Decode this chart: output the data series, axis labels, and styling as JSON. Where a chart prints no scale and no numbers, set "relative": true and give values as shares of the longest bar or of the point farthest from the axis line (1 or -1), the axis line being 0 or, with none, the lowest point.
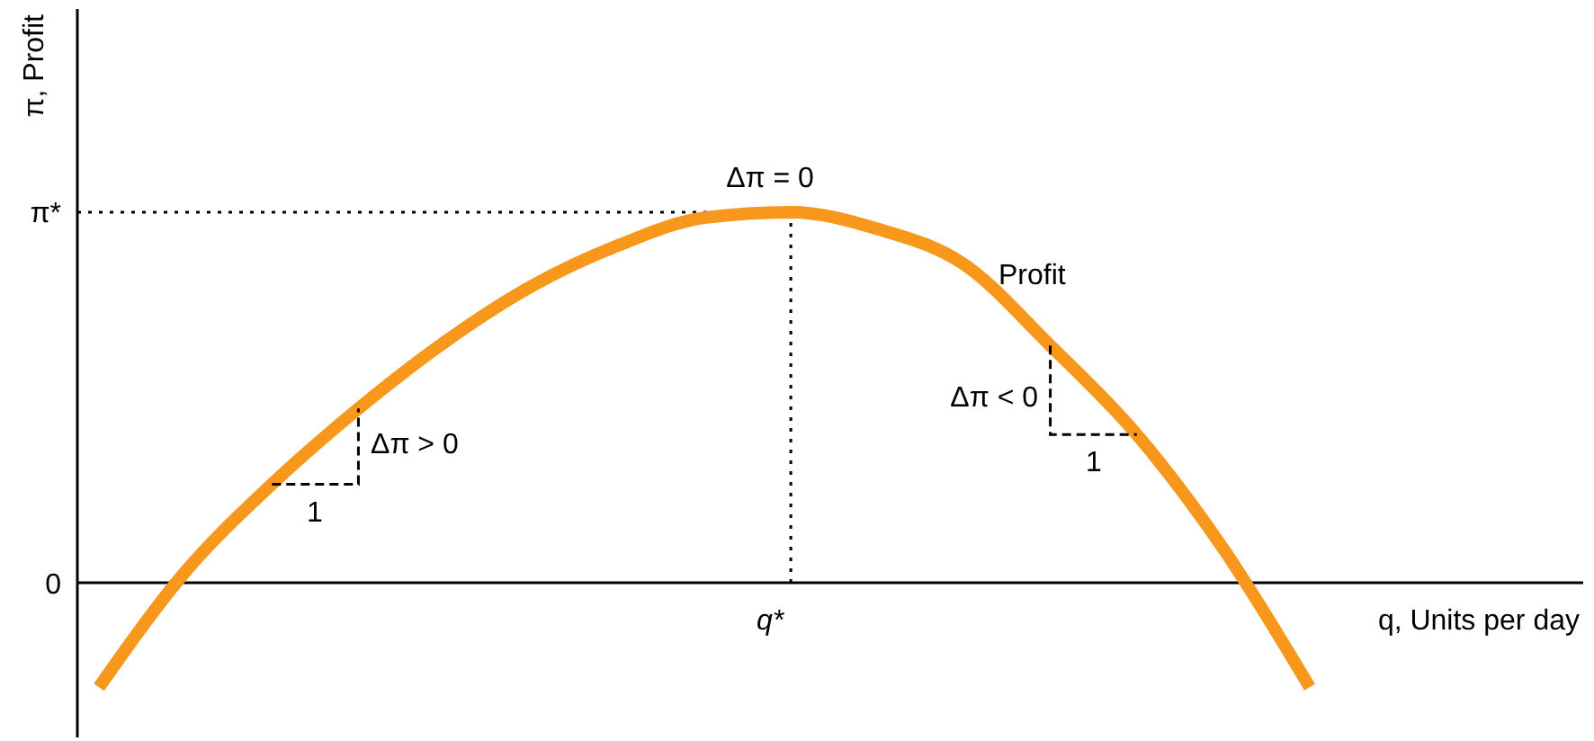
{
  "chart_data": {
    "type": "line",
    "relative": true,
    "xlabel": "q, Units per day",
    "ylabel": "π, Profit",
    "categories": [
      null,
      null,
      null,
      null,
      null,
      null,
      null,
      null,
      null,
      null,
      null,
      null,
      null,
      null,
      null
    ],
    "series": [
      {
        "color": "#f7981d",
        "values": [
          -0.282,
          0.03,
          0.266,
          0.47,
          0.65,
          0.8,
          0.91,
          0.985,
          1,
          0.955,
          0.86,
          0.64,
          0.4,
          0.092,
          -0.282
        ]
      }
    ],
    "ref_lines": [
      {
        "axis": "y",
        "value": 1,
        "label": "π*",
        "line_style": "dotted"
      }
    ],
    "annotations": [
      "0",
      "q*",
      "Δπ = 0",
      "Δπ > 0",
      "1",
      "Δπ < 0",
      "1",
      "Profit"
    ],
    "marker": "none",
    "line_style": "solid"
  }
}
